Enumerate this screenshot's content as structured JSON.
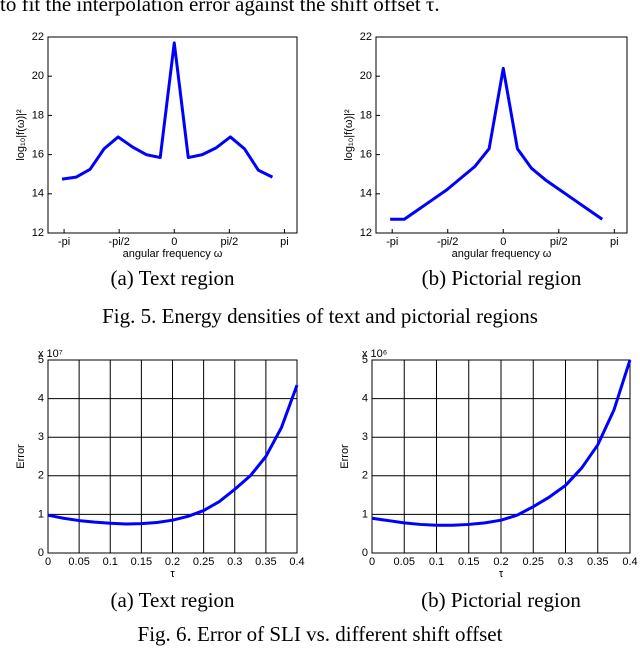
{
  "header_text": "to fit the interpolation error against the shift offset τ.",
  "chart_data": [
    {
      "type": "line",
      "caption": "(a) Text region",
      "xlabel": "angular frequency ω",
      "ylabel": "log₁₀|f(ω)|²",
      "x": [
        -3.2,
        -2.8,
        -2.4,
        -2.0,
        -1.6,
        -1.2,
        -0.8,
        -0.4,
        0,
        0.4,
        0.8,
        1.2,
        1.6,
        2.0,
        2.4,
        2.8
      ],
      "values": [
        14.75,
        14.85,
        15.25,
        16.3,
        16.9,
        16.4,
        16.0,
        15.85,
        21.7,
        15.85,
        16.0,
        16.35,
        16.9,
        16.3,
        15.2,
        14.85
      ],
      "color": "#0000ff",
      "xlim": [
        -3.6,
        3.5
      ],
      "ylim": [
        12,
        22
      ],
      "xticks": [
        {
          "value": -3.1416,
          "label": "-pi"
        },
        {
          "value": -1.5708,
          "label": "-pi/2"
        },
        0,
        {
          "value": 1.5708,
          "label": "pi/2"
        },
        {
          "value": 3.1416,
          "label": "pi"
        }
      ],
      "yticks": [
        12,
        14,
        16,
        18,
        20,
        22
      ],
      "grid": false
    },
    {
      "type": "line",
      "caption": "(b) Pictorial region",
      "xlabel": "angular frequency ω",
      "ylabel": "log₁₀|f(ω)|²",
      "x": [
        -3.2,
        -2.8,
        -2.4,
        -2.0,
        -1.6,
        -1.2,
        -0.8,
        -0.4,
        0,
        0.4,
        0.8,
        1.2,
        1.6,
        2.0,
        2.4,
        2.8
      ],
      "values": [
        12.7,
        12.7,
        13.2,
        13.7,
        14.2,
        14.8,
        15.4,
        16.3,
        20.4,
        16.3,
        15.3,
        14.7,
        14.2,
        13.7,
        13.2,
        12.7
      ],
      "color": "#0000ff",
      "xlim": [
        -3.6,
        3.5
      ],
      "ylim": [
        12,
        22
      ],
      "xticks": [
        {
          "value": -3.1416,
          "label": "-pi"
        },
        {
          "value": -1.5708,
          "label": "-pi/2"
        },
        0,
        {
          "value": 1.5708,
          "label": "pi/2"
        },
        {
          "value": 3.1416,
          "label": "pi"
        }
      ],
      "yticks": [
        12,
        14,
        16,
        18,
        20,
        22
      ],
      "grid": false
    },
    {
      "type": "line",
      "caption": "(a) Text region",
      "xlabel": "τ",
      "ylabel": "Error",
      "multiplier": "x 10⁷",
      "x": [
        0,
        0.025,
        0.05,
        0.075,
        0.1,
        0.125,
        0.15,
        0.175,
        0.2,
        0.225,
        0.25,
        0.275,
        0.3,
        0.325,
        0.35,
        0.375,
        0.4
      ],
      "values": [
        0.98,
        0.9,
        0.84,
        0.8,
        0.77,
        0.75,
        0.76,
        0.79,
        0.85,
        0.95,
        1.1,
        1.33,
        1.65,
        2.0,
        2.5,
        3.25,
        4.35
      ],
      "color": "#0000ff",
      "xlim": [
        0,
        0.4
      ],
      "ylim": [
        0,
        5
      ],
      "xticks": [
        0,
        0.05,
        0.1,
        0.15,
        0.2,
        0.25,
        0.3,
        0.35,
        0.4
      ],
      "yticks": [
        0,
        1,
        2,
        3,
        4,
        5
      ],
      "grid": true
    },
    {
      "type": "line",
      "caption": "(b) Pictorial region",
      "xlabel": "τ",
      "ylabel": "Error",
      "multiplier": "x 10⁶",
      "x": [
        0,
        0.025,
        0.05,
        0.075,
        0.1,
        0.125,
        0.15,
        0.175,
        0.2,
        0.225,
        0.25,
        0.275,
        0.3,
        0.325,
        0.35,
        0.375,
        0.4
      ],
      "values": [
        0.9,
        0.84,
        0.78,
        0.74,
        0.72,
        0.72,
        0.74,
        0.78,
        0.85,
        0.98,
        1.2,
        1.45,
        1.75,
        2.2,
        2.8,
        3.7,
        5.0
      ],
      "color": "#0000ff",
      "xlim": [
        0,
        0.4
      ],
      "ylim": [
        0,
        5
      ],
      "xticks": [
        0,
        0.05,
        0.1,
        0.15,
        0.2,
        0.25,
        0.3,
        0.35,
        0.4
      ],
      "yticks": [
        0,
        1,
        2,
        3,
        4,
        5
      ],
      "grid": true
    }
  ],
  "fig_captions": [
    "Fig. 5. Energy densities of text and pictorial regions",
    "Fig. 6. Error of SLI vs. different shift offset"
  ]
}
